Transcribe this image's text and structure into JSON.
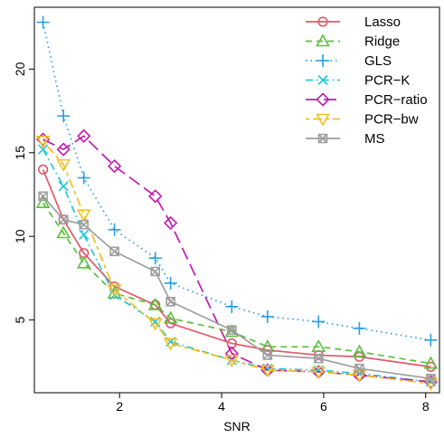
{
  "chart_data": {
    "type": "line",
    "xlabel": "SNR",
    "ylabel": "",
    "title": "",
    "xlim": [
      0.33,
      8.27
    ],
    "ylim": [
      0.65,
      23.7
    ],
    "xticks": [
      2,
      4,
      6,
      8
    ],
    "yticks": [
      5,
      10,
      15,
      20
    ],
    "grid": false,
    "legend_position": "top-right",
    "series": [
      {
        "name": "Lasso",
        "color": "#e05a6a",
        "dash": "solid",
        "marker": "circle",
        "x": [
          0.5,
          0.9,
          1.3,
          1.9,
          2.7,
          3.0,
          4.2,
          4.9,
          5.9,
          6.7,
          8.1
        ],
        "y": [
          14.0,
          11.0,
          9.0,
          7.0,
          5.9,
          4.8,
          3.6,
          3.2,
          2.9,
          2.8,
          2.2
        ]
      },
      {
        "name": "Ridge",
        "color": "#5cbf3f",
        "dash": "dashed",
        "marker": "triangle-up",
        "x": [
          0.5,
          0.9,
          1.3,
          1.9,
          2.7,
          3.0,
          4.2,
          4.9,
          5.9,
          6.7,
          8.1
        ],
        "y": [
          12.0,
          10.2,
          8.4,
          6.6,
          5.9,
          5.1,
          4.3,
          3.4,
          3.4,
          3.1,
          2.4
        ]
      },
      {
        "name": "GLS",
        "color": "#2b9fe0",
        "dash": "dotted",
        "marker": "plus",
        "x": [
          0.5,
          0.9,
          1.3,
          1.9,
          2.7,
          3.0,
          4.2,
          4.9,
          5.9,
          6.7,
          8.1
        ],
        "y": [
          22.8,
          17.2,
          13.5,
          10.4,
          8.7,
          7.2,
          5.8,
          5.2,
          4.9,
          4.5,
          3.8
        ]
      },
      {
        "name": "PCR−K",
        "color": "#22c8d8",
        "dash": "dashdot",
        "marker": "cross",
        "x": [
          0.5,
          0.9,
          1.3,
          1.9,
          2.7,
          3.0,
          4.2,
          4.9,
          5.9,
          6.7,
          8.1
        ],
        "y": [
          15.2,
          13.0,
          10.1,
          6.5,
          4.9,
          3.7,
          2.6,
          2.1,
          2.0,
          1.8,
          1.3
        ]
      },
      {
        "name": "PCR−ratio",
        "color": "#c21ab2",
        "dash": "longdash",
        "marker": "diamond",
        "x": [
          0.5,
          0.9,
          1.3,
          1.9,
          2.7,
          3.0,
          4.2,
          4.9,
          5.9,
          6.7,
          8.1
        ],
        "y": [
          15.8,
          15.2,
          16.0,
          14.2,
          12.4,
          10.8,
          3.0,
          2.0,
          1.9,
          1.7,
          1.3
        ]
      },
      {
        "name": "PCR−bw",
        "color": "#f0c020",
        "dash": "twodash",
        "marker": "triangle-down",
        "x": [
          0.5,
          0.9,
          1.3,
          1.9,
          2.7,
          3.0,
          4.2,
          4.9,
          5.9,
          6.7,
          8.1
        ],
        "y": [
          15.7,
          14.3,
          11.3,
          6.8,
          4.8,
          3.6,
          2.6,
          2.0,
          1.9,
          1.7,
          1.2
        ]
      },
      {
        "name": "MS",
        "color": "#9e9e9e",
        "dash": "solid",
        "marker": "box-x",
        "x": [
          0.5,
          0.9,
          1.3,
          1.9,
          2.7,
          3.0,
          4.2,
          4.9,
          5.9,
          6.7,
          8.1
        ],
        "y": [
          12.4,
          11.0,
          10.7,
          9.1,
          7.9,
          6.1,
          4.4,
          2.9,
          2.7,
          2.1,
          1.5
        ]
      }
    ]
  }
}
